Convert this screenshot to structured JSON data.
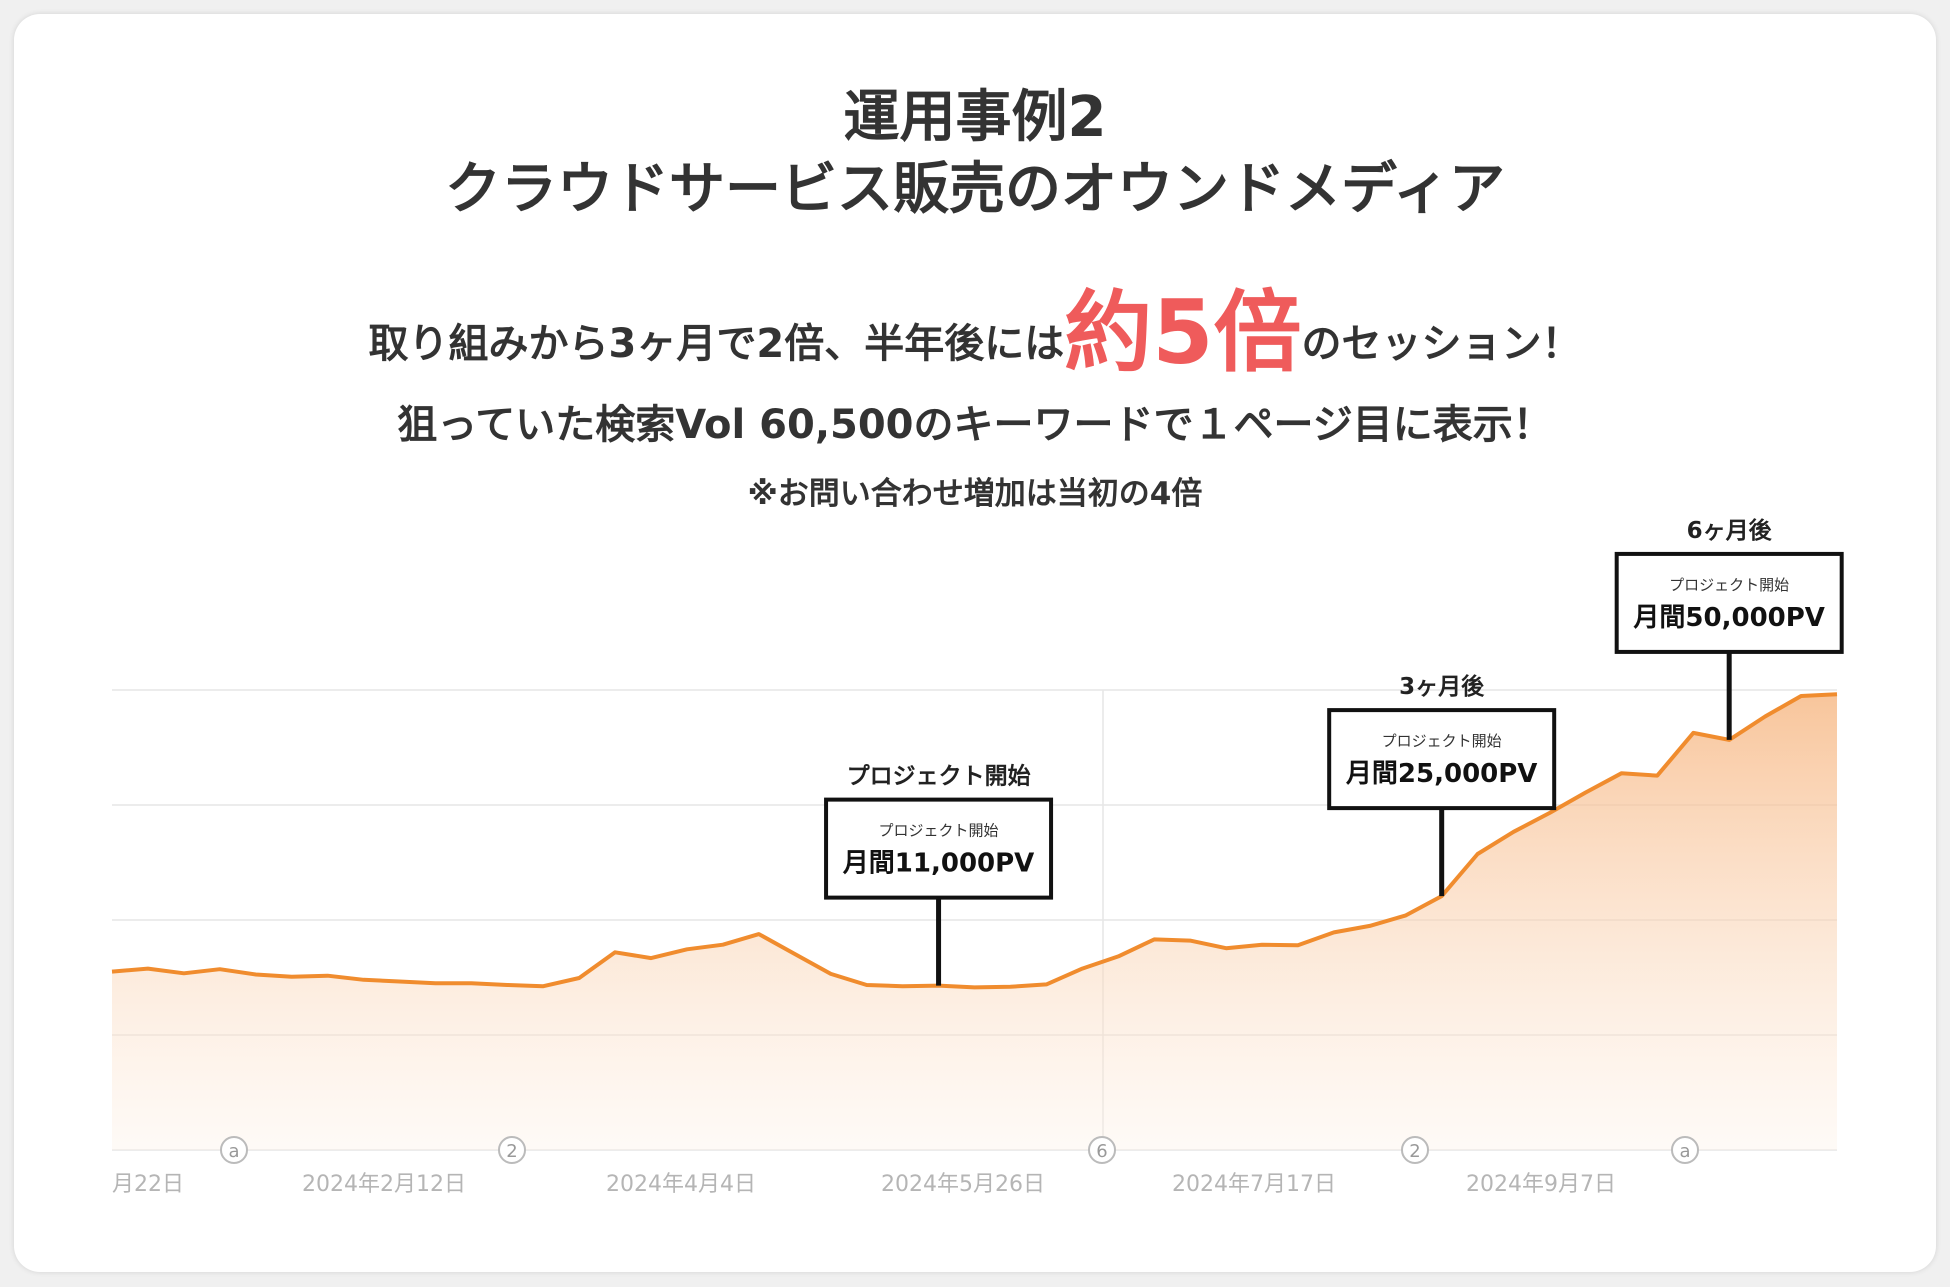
{
  "header": {
    "title_line1": "運用事例2",
    "title_line2": "クラウドサービス販売のオウンドメディア",
    "subtitle_pre": "取り組みから3ヶ月で2倍、半年後には",
    "subtitle_highlight": "約5倍",
    "subtitle_post": "のセッション！",
    "subtitle2": "狙っていた検索Vol 60,500のキーワードで１ページ目に表示！",
    "note": "※お問い合わせ増加は当初の4倍"
  },
  "colors": {
    "line": "#f08c2e",
    "highlight": "#ef5b5b",
    "text": "#333333"
  },
  "chart_data": {
    "type": "area",
    "x_tick_labels": [
      "月22日",
      "2024年2月12日",
      "2024年4月4日",
      "2024年5月26日",
      "2024年7月17日",
      "2024年9月7日"
    ],
    "marker_icons": [
      "a",
      "2",
      "6",
      "2",
      "a"
    ],
    "values": [
      305,
      310,
      302,
      309,
      300,
      296,
      298,
      291,
      288,
      285,
      285,
      282,
      280,
      294,
      338,
      328,
      343,
      351,
      369,
      335,
      301,
      282,
      280,
      281,
      278,
      279,
      283,
      310,
      331,
      360,
      358,
      345,
      351,
      350,
      372,
      383,
      401,
      434,
      506,
      544,
      576,
      611,
      644,
      640,
      713,
      701,
      741,
      776,
      779
    ],
    "ylim": [
      0,
      1000
    ],
    "grid": true,
    "annotations": [
      {
        "label_above": "プロジェクト開始",
        "small_text": "プロジェクト開始",
        "main_text": "月間11,000PV",
        "index": 23
      },
      {
        "label_above": "3ヶ月後",
        "small_text": "プロジェクト開始",
        "main_text": "月間25,000PV",
        "index": 37
      },
      {
        "label_above": "6ヶ月後",
        "small_text": "プロジェクト開始",
        "main_text": "月間50,000PV",
        "index": 45
      }
    ]
  }
}
